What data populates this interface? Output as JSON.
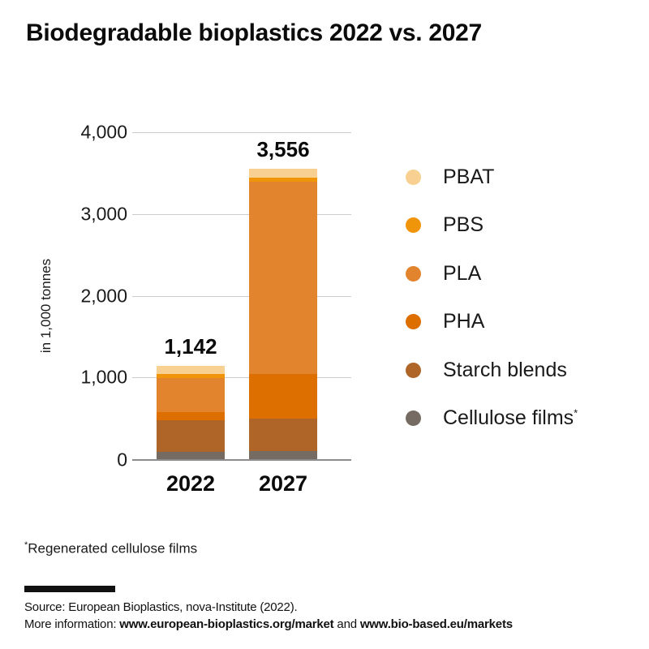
{
  "title": "Biodegradable bioplastics 2022 vs. 2027",
  "chart_data": {
    "type": "bar",
    "stacked": true,
    "title": "Biodegradable bioplastics 2022 vs. 2027",
    "ylabel": "in 1,000 tonnes",
    "categories": [
      "2022",
      "2027"
    ],
    "totals": [
      1142,
      3556
    ],
    "total_labels": [
      "1,142",
      "3,556"
    ],
    "ylim": [
      0,
      4000
    ],
    "grid": "horizontal",
    "legend_position": "right",
    "yticks": [
      {
        "value": 4000,
        "label": "4,000"
      },
      {
        "value": 3000,
        "label": "3,000"
      },
      {
        "value": 2000,
        "label": "2,000"
      },
      {
        "value": 1000,
        "label": "1,000"
      },
      {
        "value": 0,
        "label": "0"
      }
    ],
    "series": [
      {
        "name": "PBAT",
        "color": "#f7d092",
        "values": [
          100,
          110
        ]
      },
      {
        "name": "PBS",
        "color": "#f0940a",
        "values": [
          50,
          50
        ]
      },
      {
        "name": "PLA",
        "color": "#e2832d",
        "values": [
          417,
          2350
        ]
      },
      {
        "name": "PHA",
        "color": "#dd6e00",
        "values": [
          100,
          546
        ]
      },
      {
        "name": "Starch blends",
        "color": "#ae6527",
        "values": [
          385,
          400
        ]
      },
      {
        "name": "Cellulose films",
        "color": "#756b62",
        "values": [
          90,
          100
        ],
        "footnote_marker": "*"
      }
    ]
  },
  "y_axis_title": "in 1,000 tonnes",
  "footnote": {
    "marker": "*",
    "text": "Regenerated cellulose films"
  },
  "footer": {
    "source": "Source: European Bioplastics, nova-Institute (2022).",
    "more_info_prefix": "More information: ",
    "link1": "www.european-bioplastics.org/market",
    "more_info_middle": " and ",
    "link2": "www.bio-based.eu/markets"
  },
  "colors": {
    "grid": "#cccccc",
    "axis_line": "#8c8c8c",
    "text": "#1a1a1a",
    "divider": "#111111",
    "background": "#ffffff"
  }
}
